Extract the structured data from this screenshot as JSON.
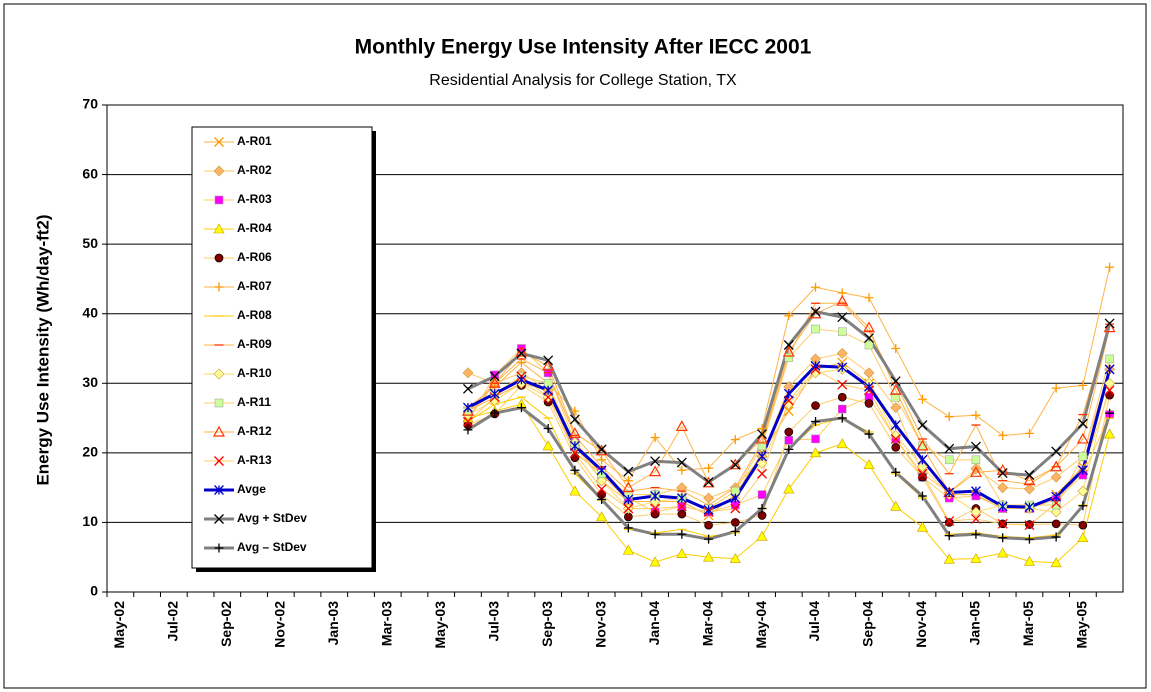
{
  "chart_data": {
    "type": "line",
    "title": "Monthly Energy Use Intensity After  IECC 2001",
    "subtitle": "Residential Analysis for College Station, TX",
    "y_label": "Energy Use Intensity (Wh/day-ft2)",
    "categories": [
      "May-02",
      null,
      "Jul-02",
      null,
      "Sep-02",
      null,
      "Nov-02",
      null,
      "Jan-03",
      null,
      "Mar-03",
      null,
      "May-03",
      null,
      "Jul-03",
      null,
      "Sep-03",
      null,
      "Nov-03",
      null,
      "Jan-04",
      null,
      "Mar-04",
      null,
      "May-04",
      null,
      "Jul-04",
      null,
      "Sep-04",
      null,
      "Nov-04",
      null,
      "Jan-05",
      null,
      "Mar-05",
      null,
      "May-05",
      null
    ],
    "ylim": [
      0,
      70
    ],
    "yticks": [
      0,
      10,
      20,
      30,
      40,
      50,
      60,
      70
    ],
    "grid": true,
    "legend": "upper left",
    "series": [
      {
        "name": "A-R01",
        "color": "#ffb347",
        "marker": "x",
        "marker_color": "#ff9900",
        "width": 1,
        "values": [
          null,
          null,
          null,
          null,
          null,
          null,
          null,
          null,
          null,
          null,
          null,
          null,
          null,
          26,
          28,
          30,
          29,
          20,
          17,
          13,
          13,
          13,
          11,
          14,
          20,
          26,
          32,
          33,
          30,
          24,
          19,
          14,
          14,
          12,
          12,
          14,
          18,
          32
        ]
      },
      {
        "name": "A-R02",
        "color": "#ffc966",
        "marker": "diamond",
        "marker_color": "#ffb366",
        "width": 1,
        "values": [
          null,
          null,
          null,
          null,
          null,
          null,
          null,
          null,
          null,
          null,
          null,
          null,
          null,
          31.5,
          30,
          31.5,
          29,
          21,
          16,
          13,
          14,
          15,
          13.5,
          15,
          19.5,
          29.5,
          33.5,
          34.3,
          31.5,
          26.5,
          17,
          14.3,
          17.7,
          15,
          14.8,
          16.5,
          19.5,
          32
        ]
      },
      {
        "name": "A-R03",
        "color": "#ffcc66",
        "marker": "square",
        "marker_color": "#ff00ff",
        "width": 1,
        "values": [
          null,
          null,
          null,
          null,
          null,
          null,
          null,
          null,
          null,
          null,
          null,
          null,
          null,
          24.5,
          31.2,
          35,
          31.5,
          21.5,
          17.3,
          13.5,
          11.5,
          12.3,
          11.5,
          12.5,
          14,
          21.8,
          22,
          26.3,
          28,
          22,
          16.5,
          13.5,
          13.8,
          12,
          12,
          13.3,
          16.8,
          25.5
        ]
      },
      {
        "name": "A-R04",
        "color": "#ffcc00",
        "marker": "triangle",
        "marker_color": "#ffff00",
        "width": 1,
        "values": [
          null,
          null,
          null,
          null,
          null,
          null,
          null,
          null,
          null,
          null,
          null,
          null,
          null,
          25,
          26,
          27,
          21,
          14.5,
          10.8,
          6,
          4.3,
          5.5,
          5,
          4.8,
          8,
          14.8,
          20,
          21.3,
          18.3,
          12.3,
          9.3,
          4.7,
          4.8,
          5.6,
          4.4,
          4.2,
          7.8,
          22.7
        ]
      },
      {
        "name": "A-R06",
        "color": "#ffcc66",
        "marker": "circle",
        "marker_color": "#800000",
        "width": 1,
        "values": [
          null,
          null,
          null,
          null,
          null,
          null,
          null,
          null,
          null,
          null,
          null,
          null,
          null,
          24,
          25.6,
          29.7,
          27.3,
          19.3,
          14,
          10.8,
          11.2,
          11.2,
          9.6,
          10,
          11,
          23,
          26.8,
          28,
          27.1,
          20.8,
          16.5,
          10,
          12,
          9.8,
          9.7,
          9.8,
          9.6,
          28.3
        ]
      },
      {
        "name": "A-R07",
        "color": "#ffb347",
        "marker": "plus",
        "marker_color": "#ff9900",
        "width": 1,
        "values": [
          null,
          null,
          null,
          null,
          null,
          null,
          null,
          null,
          null,
          null,
          null,
          null,
          null,
          26.5,
          29.5,
          33,
          30,
          26,
          19,
          16,
          22.2,
          17.5,
          17.8,
          21.9,
          23.5,
          39.7,
          43.8,
          43,
          42.3,
          35,
          27.7,
          25.2,
          25.4,
          22.5,
          22.8,
          29.3,
          29.7,
          46.7
        ]
      },
      {
        "name": "A-R08",
        "color": "#ffcc00",
        "marker": "dash",
        "marker_color": "#ffcc00",
        "width": 1,
        "values": [
          null,
          null,
          null,
          null,
          null,
          null,
          null,
          null,
          null,
          null,
          null,
          null,
          null,
          24.5,
          27,
          28,
          25,
          17,
          13.2,
          9,
          8.5,
          9,
          8,
          8.5,
          12,
          20.5,
          24,
          25,
          23,
          17,
          13.5,
          8.3,
          8.5,
          8,
          7.8,
          8.2,
          12.5,
          25
        ]
      },
      {
        "name": "A-R09",
        "color": "#ffb347",
        "marker": "dash",
        "marker_color": "#ff3300",
        "width": 1,
        "values": [
          null,
          null,
          null,
          null,
          null,
          null,
          null,
          null,
          null,
          null,
          null,
          null,
          null,
          25,
          30,
          33.5,
          31.5,
          22.5,
          18,
          14.5,
          15,
          14.5,
          12.5,
          15,
          21.5,
          34,
          41.5,
          41.5,
          37.5,
          30,
          22,
          17,
          24,
          16,
          15.5,
          18,
          25.5,
          38.5
        ]
      },
      {
        "name": "A-R10",
        "color": "#ffd966",
        "marker": "diamond",
        "marker_color": "#ffff99",
        "width": 1,
        "values": [
          null,
          null,
          null,
          null,
          null,
          null,
          null,
          null,
          null,
          null,
          null,
          null,
          null,
          25.5,
          27.5,
          30,
          28,
          21.5,
          16,
          12,
          13,
          13.5,
          12,
          14.5,
          18.5,
          27,
          31.5,
          32,
          30,
          22.5,
          18,
          14,
          11.5,
          12.5,
          12,
          11.5,
          14.5,
          30
        ]
      },
      {
        "name": "A-R11",
        "color": "#ffcc66",
        "marker": "square",
        "marker_color": "#ccff99",
        "width": 1,
        "values": [
          null,
          null,
          null,
          null,
          null,
          null,
          null,
          null,
          null,
          null,
          null,
          null,
          null,
          26,
          28.5,
          31,
          30,
          21,
          17,
          14,
          14,
          13.5,
          12,
          14.5,
          21,
          33.7,
          37.8,
          37.4,
          35.5,
          28,
          21,
          19,
          19,
          12.5,
          12.5,
          12.5,
          19.5,
          33.5
        ]
      },
      {
        "name": "A-R12",
        "color": "#ffb347",
        "marker": "triangle-open",
        "marker_color": "#ff3300",
        "width": 1,
        "values": [
          null,
          null,
          null,
          null,
          null,
          null,
          null,
          null,
          null,
          null,
          null,
          null,
          null,
          26,
          30,
          34.5,
          32.5,
          22.8,
          20.3,
          15,
          17.3,
          23.8,
          15.7,
          18.3,
          22,
          34.5,
          40,
          41.8,
          38,
          29,
          21,
          14.3,
          17.2,
          17.5,
          16,
          18,
          22,
          38
        ]
      },
      {
        "name": "A-R13",
        "color": "#ffcc66",
        "marker": "x",
        "marker_color": "#ff0000",
        "width": 1,
        "values": [
          null,
          null,
          null,
          null,
          null,
          null,
          null,
          null,
          null,
          null,
          null,
          null,
          null,
          24.5,
          28,
          31,
          28,
          20,
          14.8,
          12,
          12,
          12.3,
          11.5,
          12,
          17,
          27.5,
          32,
          29.8,
          29,
          22,
          17,
          10.2,
          10.5,
          9.8,
          9.6,
          12.8,
          17.5,
          29
        ]
      },
      {
        "name": "Avge",
        "color": "#0000cc",
        "marker": "star",
        "marker_color": "#0000cc",
        "width": 3,
        "values": [
          null,
          null,
          null,
          null,
          null,
          null,
          null,
          null,
          null,
          null,
          null,
          null,
          null,
          26.5,
          28.5,
          30.5,
          29,
          21,
          17.5,
          13.3,
          13.8,
          13.5,
          11.8,
          13.5,
          19.5,
          28.5,
          32.5,
          32.3,
          29.5,
          24,
          19,
          14.3,
          14.5,
          12.3,
          12.2,
          13.7,
          17.5,
          32
        ]
      },
      {
        "name": "Avg + StDev",
        "color": "#808080",
        "marker": "x",
        "marker_color": "#000000",
        "width": 3,
        "values": [
          null,
          null,
          null,
          null,
          null,
          null,
          null,
          null,
          null,
          null,
          null,
          null,
          null,
          29.2,
          31,
          34.3,
          33.3,
          24.8,
          20.5,
          17.3,
          18.8,
          18.6,
          15.8,
          18.3,
          22.7,
          35.5,
          40.3,
          39.5,
          36.5,
          30.3,
          24,
          20.6,
          20.9,
          17.1,
          16.8,
          20.2,
          24.2,
          38.6
        ]
      },
      {
        "name": "Avg – StDev",
        "color": "#808080",
        "marker": "plus",
        "marker_color": "#000000",
        "width": 3,
        "values": [
          null,
          null,
          null,
          null,
          null,
          null,
          null,
          null,
          null,
          null,
          null,
          null,
          null,
          23.3,
          25.7,
          26.5,
          23.5,
          17.5,
          13.3,
          9.2,
          8.3,
          8.3,
          7.6,
          8.7,
          12,
          20.5,
          24.5,
          25,
          22.7,
          17.2,
          13.8,
          8.1,
          8.3,
          7.8,
          7.6,
          7.9,
          12.4,
          25.7
        ]
      }
    ]
  }
}
